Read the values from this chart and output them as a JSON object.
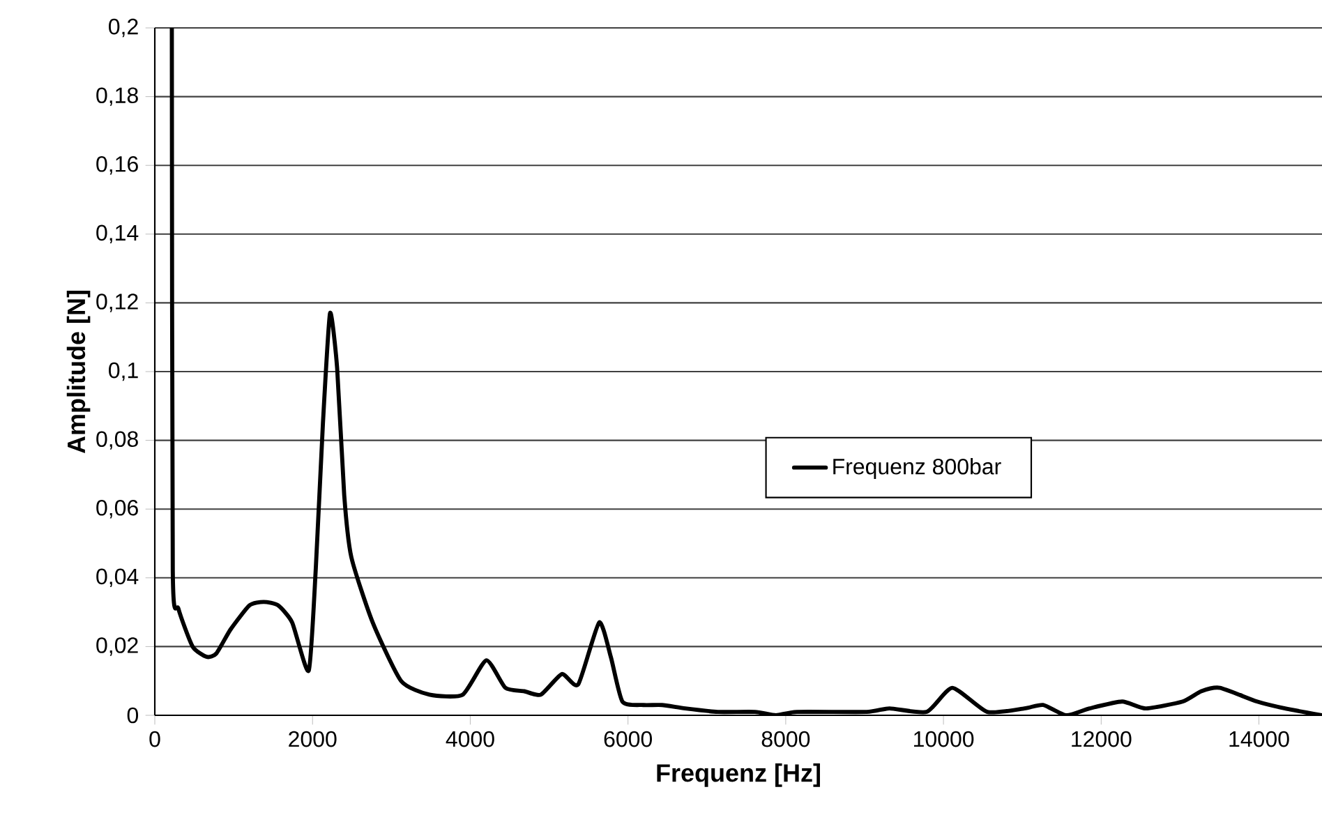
{
  "chart_data": {
    "type": "line",
    "xlabel": "Frequenz [Hz]",
    "ylabel": "Amplitude [N]",
    "xlim": [
      0,
      14800
    ],
    "ylim": [
      0,
      0.2
    ],
    "xticks": [
      0,
      2000,
      4000,
      6000,
      8000,
      10000,
      12000,
      14000
    ],
    "yticks": [
      0,
      {
        "value": 0.02,
        "label": "0,02"
      },
      {
        "value": 0.04,
        "label": "0,04"
      },
      {
        "value": 0.06,
        "label": "0,06"
      },
      {
        "value": 0.08,
        "label": "0,08"
      },
      {
        "value": 0.1,
        "label": "0,1"
      },
      {
        "value": 0.12,
        "label": "0,12"
      },
      {
        "value": 0.14,
        "label": "0,14"
      },
      {
        "value": 0.16,
        "label": "0,16"
      },
      {
        "value": 0.18,
        "label": "0,18"
      },
      {
        "value": 0.2,
        "label": "0,2"
      }
    ],
    "grid": "y",
    "legend": "right",
    "marker": "none",
    "line_style": "solid",
    "series": [
      {
        "name": "Frequenz 800bar",
        "color": "#000000",
        "x": [
          216,
          228,
          300,
          480,
          660,
          781,
          961,
          1201,
          1381,
          1562,
          1742,
          1952,
          2042,
          2132,
          2222,
          2312,
          2402,
          2492,
          2763,
          3123,
          3483,
          3904,
          4204,
          4445,
          4685,
          4895,
          5162,
          5369,
          5634,
          5782,
          5929,
          6195,
          6431,
          6726,
          7139,
          7611,
          7876,
          8142,
          9027,
          9316,
          9788,
          10112,
          10555,
          11027,
          11263,
          11558,
          11853,
          12266,
          12561,
          13033,
          13269,
          13505,
          13977,
          14331,
          14800
        ],
        "values": [
          0.2,
          0.042,
          0.031,
          0.02,
          0.017,
          0.018,
          0.025,
          0.032,
          0.033,
          0.032,
          0.027,
          0.013,
          0.043,
          0.085,
          0.117,
          0.101,
          0.064,
          0.046,
          0.027,
          0.01,
          0.006,
          0.006,
          0.016,
          0.008,
          0.007,
          0.006,
          0.012,
          0.009,
          0.027,
          0.017,
          0.004,
          0.003,
          0.003,
          0.002,
          0.001,
          0.001,
          0,
          0.001,
          0.001,
          0.002,
          0.001,
          0.008,
          0.001,
          0.002,
          0.003,
          0,
          0.002,
          0.004,
          0.002,
          0.004,
          0.007,
          0.008,
          0.004,
          0.002,
          0
        ]
      }
    ]
  }
}
